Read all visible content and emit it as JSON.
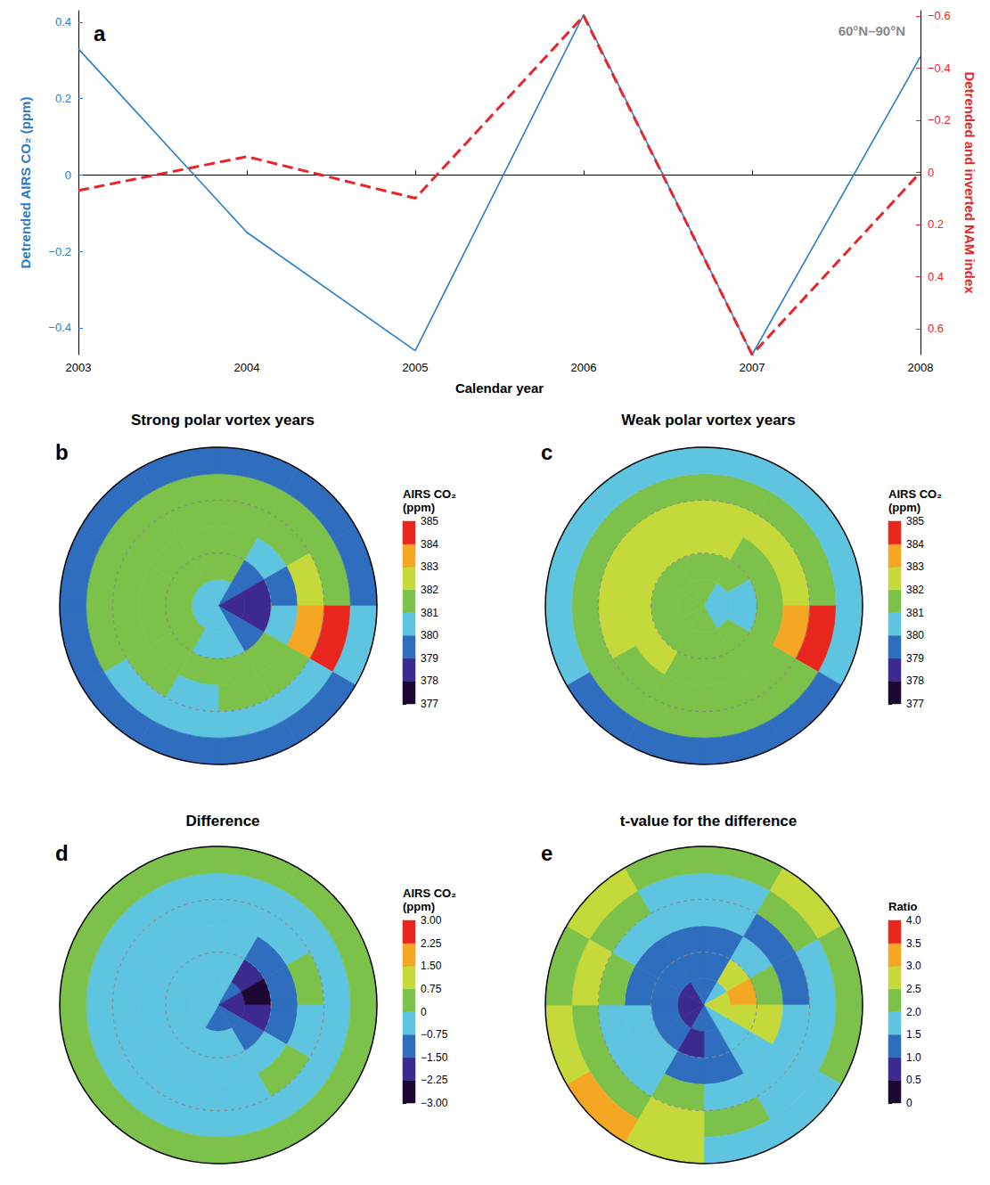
{
  "chart_data": [
    {
      "type": "line",
      "panel": "a",
      "annotation": "60°N–90°N",
      "xlabel": "Calendar year",
      "ylabel": "Detrended AIRS CO₂ (ppm)",
      "y2label": "Detrended and inverted NAM index",
      "x": [
        2003,
        2004,
        2005,
        2006,
        2007,
        2008
      ],
      "xlim": [
        2003,
        2008
      ],
      "xticks": [
        2003,
        2004,
        2005,
        2006,
        2007,
        2008
      ],
      "ylim": [
        -0.47,
        0.43
      ],
      "yticks": [
        {
          "value": -0.4,
          "label": "−0.4"
        },
        {
          "value": -0.2,
          "label": "−0.2"
        },
        0,
        0.2,
        0.4
      ],
      "y2lim": [
        0.7,
        -0.62
      ],
      "y2ticks": [
        {
          "value": -0.6,
          "label": "−0.6"
        },
        {
          "value": -0.4,
          "label": "−0.4"
        },
        {
          "value": -0.2,
          "label": "−0.2"
        },
        0,
        0.2,
        0.4,
        0.6
      ],
      "series": [
        {
          "color": "#2a7ec6",
          "line_style": "solid",
          "values": [
            0.33,
            -0.15,
            -0.46,
            0.42,
            -0.47,
            0.31
          ]
        },
        {
          "color": "#e8262a",
          "line_style": "dashed",
          "axis": "y2",
          "values": [
            0.07,
            -0.06,
            0.1,
            -0.6,
            0.7,
            0.0
          ]
        }
      ]
    },
    {
      "type": "heatmap",
      "panel": "b",
      "title": "Strong polar vortex years",
      "cells": [
        [
          380.5,
          379.5,
          378.5,
          378.5,
          379.5,
          380,
          380,
          380.5,
          380.5,
          380.5,
          380.5,
          380.5
        ],
        [
          381,
          379,
          378,
          378.5,
          379.5,
          380.5,
          380.5,
          381,
          381,
          381,
          381,
          381
        ],
        [
          381.5,
          380.5,
          379.5,
          380,
          381,
          381,
          381,
          381.5,
          381.5,
          381.5,
          381.5,
          381.5
        ],
        [
          381.5,
          381.5,
          382,
          383,
          381.5,
          381,
          380.5,
          381,
          381.5,
          381.5,
          381.5,
          381.5
        ],
        [
          381,
          381,
          381,
          384.5,
          380.5,
          380.5,
          380.5,
          380.5,
          381,
          381,
          381,
          381
        ],
        [
          379.5,
          379.5,
          379.5,
          380,
          379.5,
          379.5,
          379.5,
          379.5,
          379.5,
          379.5,
          379.5,
          379.5
        ]
      ],
      "colorbar": {
        "title": "AIRS CO₂ (ppm)",
        "range": [
          377,
          385
        ],
        "ticks": [
          377,
          378,
          379,
          380,
          381,
          382,
          383,
          384,
          385
        ],
        "colors": [
          "#1c0833",
          "#3d2a8f",
          "#2f6dbf",
          "#5ec4e0",
          "#7cc24a",
          "#c5d93a",
          "#f5a623",
          "#e8261e"
        ]
      }
    },
    {
      "type": "heatmap",
      "panel": "c",
      "title": "Weak polar vortex years",
      "cells": [
        [
          381,
          380.5,
          380.5,
          380.5,
          380.5,
          381,
          381,
          381,
          381,
          381,
          381,
          381
        ],
        [
          381.5,
          381,
          380.5,
          380.5,
          381,
          381,
          381,
          381.5,
          381.5,
          381.5,
          381.5,
          381.5
        ],
        [
          382,
          381.5,
          381,
          381.5,
          381.5,
          381.5,
          381.5,
          382,
          382,
          382,
          382,
          382
        ],
        [
          382,
          382,
          382,
          383.5,
          381.5,
          381.5,
          381,
          381.5,
          382,
          382,
          382,
          382
        ],
        [
          381.5,
          381.5,
          381.5,
          384.5,
          381,
          381,
          381,
          381,
          381.5,
          381.5,
          381.5,
          381.5
        ],
        [
          380,
          380,
          380,
          380.5,
          379.5,
          379.5,
          379.5,
          379.5,
          380,
          380,
          380,
          380
        ]
      ],
      "colorbar": {
        "title": "AIRS CO₂ (ppm)",
        "range": [
          377,
          385
        ],
        "ticks": [
          377,
          378,
          379,
          380,
          381,
          382,
          383,
          384,
          385
        ],
        "colors": [
          "#1c0833",
          "#3d2a8f",
          "#2f6dbf",
          "#5ec4e0",
          "#7cc24a",
          "#c5d93a",
          "#f5a623",
          "#e8261e"
        ]
      }
    },
    {
      "type": "heatmap",
      "panel": "d",
      "title": "Difference",
      "cells": [
        [
          -0.5,
          -1,
          -2,
          -2,
          -1,
          -1,
          -1,
          -0.5,
          -0.5,
          -0.5,
          -0.5,
          -0.5
        ],
        [
          -0.5,
          -2,
          -2.5,
          -2,
          -1.5,
          -0.5,
          -0.5,
          -0.5,
          -0.5,
          -0.5,
          -0.5,
          -0.5
        ],
        [
          -0.5,
          -1,
          -1.5,
          -1.5,
          -0.5,
          -0.5,
          -0.5,
          -0.5,
          -0.5,
          -0.5,
          -0.5,
          -0.5
        ],
        [
          -0.5,
          -0.5,
          0,
          -0.5,
          0,
          -0.5,
          -0.5,
          -0.5,
          -0.5,
          -0.5,
          -0.5,
          -0.5
        ],
        [
          -0.5,
          -0.5,
          -0.5,
          -0.5,
          -0.5,
          -0.5,
          -0.5,
          -0.5,
          -0.5,
          -0.5,
          -0.5,
          -0.5
        ],
        [
          0.25,
          0.25,
          0,
          0,
          0,
          0,
          0,
          0,
          0,
          0,
          0.25,
          0.25
        ]
      ],
      "colorbar": {
        "title": "AIRS CO₂ (ppm)",
        "range": [
          -3,
          3
        ],
        "ticks": [
          {
            "value": -3,
            "label": "−3.00"
          },
          {
            "value": -2.25,
            "label": "−2.25"
          },
          {
            "value": -1.5,
            "label": "−1.50"
          },
          {
            "value": -0.75,
            "label": "−0.75"
          },
          0,
          0.75,
          {
            "value": 1.5,
            "label": "1.50"
          },
          2.25,
          {
            "value": 3,
            "label": "3.00"
          }
        ],
        "colors": [
          "#1c0833",
          "#3d2a8f",
          "#2f6dbf",
          "#5ec4e0",
          "#7cc24a",
          "#c5d93a",
          "#f5a623",
          "#e8261e"
        ]
      }
    },
    {
      "type": "heatmap",
      "panel": "e",
      "title": "t-value for the difference",
      "cells": [
        [
          1,
          1.5,
          2.5,
          2.5,
          1.5,
          1,
          1,
          0.8,
          0.8,
          0.8,
          0.8,
          1
        ],
        [
          1,
          2.5,
          3,
          2.5,
          1.5,
          1,
          0.8,
          1,
          1,
          1,
          1,
          1
        ],
        [
          1.2,
          1.5,
          2,
          2.5,
          1.5,
          1.2,
          1,
          1.5,
          1.5,
          1.2,
          1.2,
          1.2
        ],
        [
          1.5,
          1.2,
          1,
          1.5,
          1.5,
          1.5,
          2,
          1.5,
          1.5,
          2,
          1.5,
          1.5
        ],
        [
          1.5,
          2,
          1.5,
          1.5,
          1.5,
          2,
          2.5,
          2,
          2,
          2.5,
          2,
          1.5
        ],
        [
          2,
          2.5,
          2,
          2,
          1.5,
          1.5,
          2.5,
          3,
          2.5,
          2,
          2.5,
          2
        ]
      ],
      "colorbar": {
        "title": "Ratio",
        "range": [
          0,
          4
        ],
        "ticks": [
          0,
          0.5,
          {
            "value": 1,
            "label": "1.0"
          },
          1.5,
          {
            "value": 2,
            "label": "2.0"
          },
          2.5,
          {
            "value": 3,
            "label": "3.0"
          },
          3.5,
          {
            "value": 4,
            "label": "4.0"
          }
        ],
        "colors": [
          "#1c0833",
          "#3d2a8f",
          "#2f6dbf",
          "#5ec4e0",
          "#7cc24a",
          "#c5d93a",
          "#f5a623",
          "#e8261e"
        ]
      }
    }
  ]
}
